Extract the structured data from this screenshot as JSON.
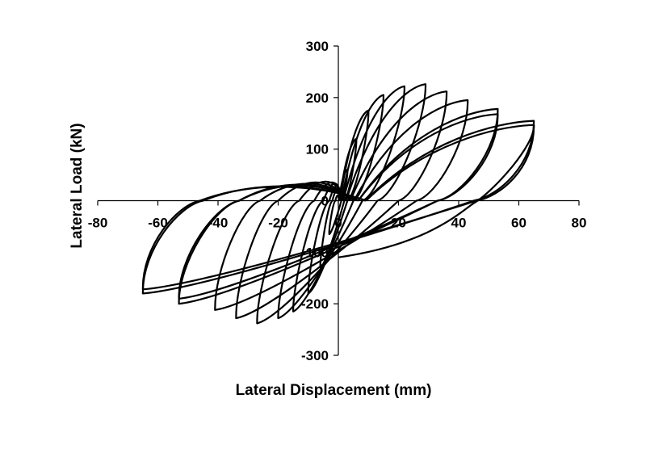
{
  "chart_data": {
    "type": "line",
    "title": "",
    "xlabel": "Lateral Displacement (mm)",
    "ylabel": "Lateral Load (kN)",
    "xlim": [
      -80,
      80
    ],
    "ylim": [
      -300,
      300
    ],
    "xticks": [
      -80,
      -60,
      -40,
      -20,
      0,
      20,
      40,
      60,
      80
    ],
    "yticks": [
      -300,
      -200,
      -100,
      0,
      100,
      200,
      300
    ],
    "xtick_labels": [
      "-80",
      "-60",
      "-40",
      "-20",
      "0",
      "20",
      "40",
      "60",
      "80"
    ],
    "ytick_labels": [
      "-300",
      "-200",
      "-100",
      "0",
      "100",
      "200",
      "300"
    ],
    "grid": false,
    "legend": "none",
    "series": [
      {
        "type": "hysteresis",
        "color": "#000000",
        "cycles": [
          {
            "dmax": 3,
            "pmax": 60,
            "dmin": -3,
            "pmin": -65,
            "resid": 1,
            "reduce": 10
          },
          {
            "dmax": 6,
            "pmax": 120,
            "dmin": -6,
            "pmin": -130,
            "resid": 2,
            "reduce": 20
          },
          {
            "dmax": 10,
            "pmax": 175,
            "dmin": -10,
            "pmin": -180,
            "resid": 3,
            "reduce": 40
          },
          {
            "dmax": 15,
            "pmax": 205,
            "dmin": -15,
            "pmin": -215,
            "resid": 5,
            "reduce": 50
          },
          {
            "dmax": 22,
            "pmax": 222,
            "dmin": -20,
            "pmin": -228,
            "resid": 8,
            "reduce": 60
          },
          {
            "dmax": 29,
            "pmax": 226,
            "dmin": -27,
            "pmin": -238,
            "resid": 13,
            "reduce": 70
          },
          {
            "dmax": 36,
            "pmax": 212,
            "dmin": -34,
            "pmin": -228,
            "resid": 20,
            "reduce": 75
          },
          {
            "dmax": 43,
            "pmax": 195,
            "dmin": -41,
            "pmin": -212,
            "resid": 26,
            "reduce": 78
          },
          {
            "dmax": 53,
            "pmax": 178,
            "dmin": -53,
            "pmin": -200,
            "resid": 33,
            "reduce": 80
          },
          {
            "dmax": 53,
            "pmax": 168,
            "dmin": -53,
            "pmin": -190,
            "resid": 33,
            "reduce": 82
          },
          {
            "dmax": 65,
            "pmax": 155,
            "dmin": -65,
            "pmin": -180,
            "resid": 45,
            "reduce": 85
          },
          {
            "dmax": 65,
            "pmax": 147,
            "dmin": -65,
            "pmin": -172,
            "resid": 46,
            "reduce": 85
          }
        ],
        "unload_end": [
          45,
          5
        ]
      }
    ]
  }
}
